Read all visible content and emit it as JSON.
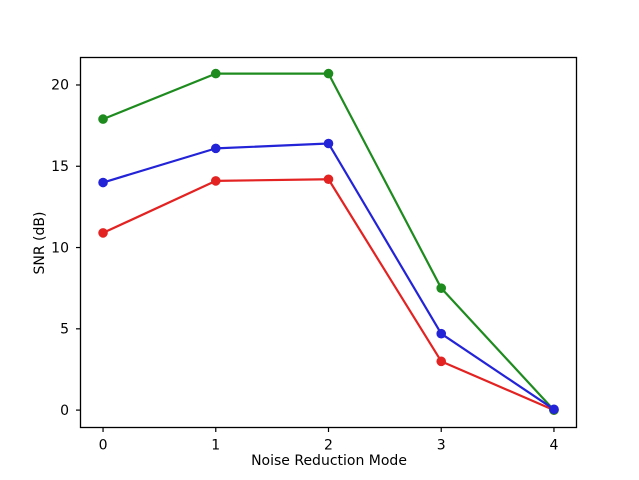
{
  "figure": {
    "background": "#ffffff",
    "axis_color": "#000000",
    "text_color": "#000000"
  },
  "chart_data": {
    "type": "line",
    "title": "",
    "xlabel": "Noise Reduction Mode",
    "ylabel": "SNR (dB)",
    "x": [
      0,
      1,
      2,
      3,
      4
    ],
    "xtick_labels": [
      "0",
      "1",
      "2",
      "3",
      "4"
    ],
    "ytick_values": [
      0,
      5,
      10,
      15,
      20
    ],
    "ytick_labels": [
      "0",
      "5",
      "10",
      "15",
      "20"
    ],
    "xlim": [
      -0.2,
      4.2
    ],
    "ylim": [
      -1.07,
      21.69
    ],
    "grid": false,
    "legend": "none",
    "marker": "circle",
    "series": [
      {
        "name": "red-series",
        "color": "#e32222",
        "values": [
          10.9,
          14.1,
          14.2,
          3.0,
          0.0
        ]
      },
      {
        "name": "green-series",
        "color": "#1e8b1e",
        "values": [
          17.9,
          20.7,
          20.7,
          7.5,
          0.0
        ]
      },
      {
        "name": "blue-series",
        "color": "#2323d8",
        "values": [
          14.0,
          16.1,
          16.4,
          4.7,
          0.05
        ]
      }
    ]
  }
}
